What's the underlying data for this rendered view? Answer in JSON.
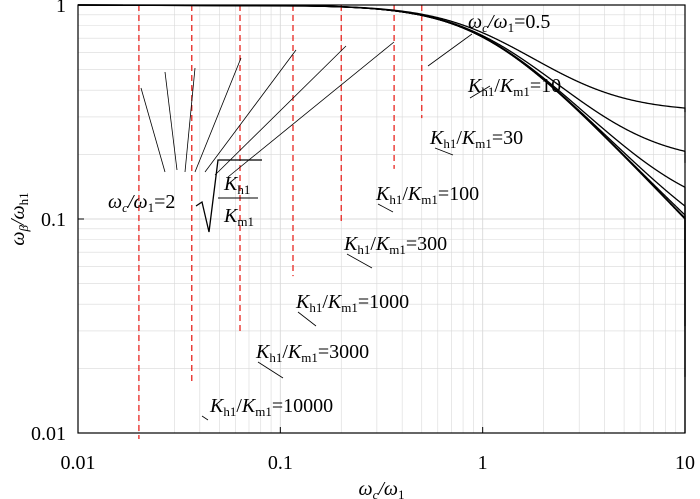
{
  "chart_data": {
    "type": "line",
    "xlabel": {
      "main": "ω",
      "sub": "c",
      "rest": "/ω",
      "sub2": "1"
    },
    "ylabel": {
      "main": "ω",
      "sub": "β",
      "rest": "/ω",
      "sub2": "h1"
    },
    "x_scale": "log",
    "y_scale": "log",
    "xlim": [
      0.01,
      10
    ],
    "ylim": [
      0.01,
      1
    ],
    "grid": true,
    "x_ticks": [
      {
        "value": 0.01,
        "label": "0.01"
      },
      {
        "value": 0.1,
        "label": "0.1"
      },
      {
        "value": 1,
        "label": "1"
      },
      {
        "value": 10,
        "label": "10"
      }
    ],
    "y_ticks": [
      {
        "value": 0.01,
        "label": "0.01"
      },
      {
        "value": 0.1,
        "label": "0.1"
      },
      {
        "value": 1,
        "label": "1"
      }
    ],
    "series": [
      {
        "ratio": 10,
        "K": "K",
        "Ksub": "h1",
        "slash": "/",
        "K2": "K",
        "K2sub": "m1",
        "eq": "=10",
        "min_x": 0.632,
        "asymptote_y": 0.316,
        "dashed_x": 0.5
      },
      {
        "ratio": 30,
        "K": "K",
        "Ksub": "h1",
        "slash": "/",
        "K2": "K",
        "K2sub": "m1",
        "eq": "=30",
        "min_x": 0.365,
        "asymptote_y": 0.183,
        "dashed_x": 0.365
      },
      {
        "ratio": 100,
        "K": "K",
        "Ksub": "h1",
        "slash": "/",
        "K2": "K",
        "K2sub": "m1",
        "eq": "=100",
        "min_x": 0.2,
        "asymptote_y": 0.1,
        "dashed_x": 0.2
      },
      {
        "ratio": 300,
        "K": "K",
        "Ksub": "h1",
        "slash": "/",
        "K2": "K",
        "K2sub": "m1",
        "eq": "=300",
        "min_x": 0.1155,
        "asymptote_y": 0.0577,
        "dashed_x": 0.1155
      },
      {
        "ratio": 1000,
        "K": "K",
        "Ksub": "h1",
        "slash": "/",
        "K2": "K",
        "K2sub": "m1",
        "eq": "=1000",
        "min_x": 0.0632,
        "asymptote_y": 0.0316,
        "dashed_x": 0.0632
      },
      {
        "ratio": 3000,
        "K": "K",
        "Ksub": "h1",
        "slash": "/",
        "K2": "K",
        "K2sub": "m1",
        "eq": "=3000",
        "min_x": 0.0365,
        "asymptote_y": 0.0183,
        "dashed_x": 0.0365
      },
      {
        "ratio": 10000,
        "K": "K",
        "Ksub": "h1",
        "slash": "/",
        "K2": "K",
        "K2sub": "m1",
        "eq": "=10000",
        "min_x": 0.02,
        "asymptote_y": 0.01,
        "dashed_x": 0.02
      }
    ],
    "annotations": {
      "half": {
        "w": "ω",
        "c": "c",
        "slash": "/ω",
        "one": "1",
        "eq": "=0.5"
      },
      "formula": {
        "w": "ω",
        "c": "c",
        "slash": "/ω",
        "one": "1",
        "eq": "=2",
        "K": "K",
        "num_sub": "h1",
        "den_sub": "m1"
      }
    },
    "colors": {
      "curve": "#000000",
      "dashed": "#e8251f",
      "grid": "#d9d9d9",
      "axis": "#000000"
    }
  }
}
